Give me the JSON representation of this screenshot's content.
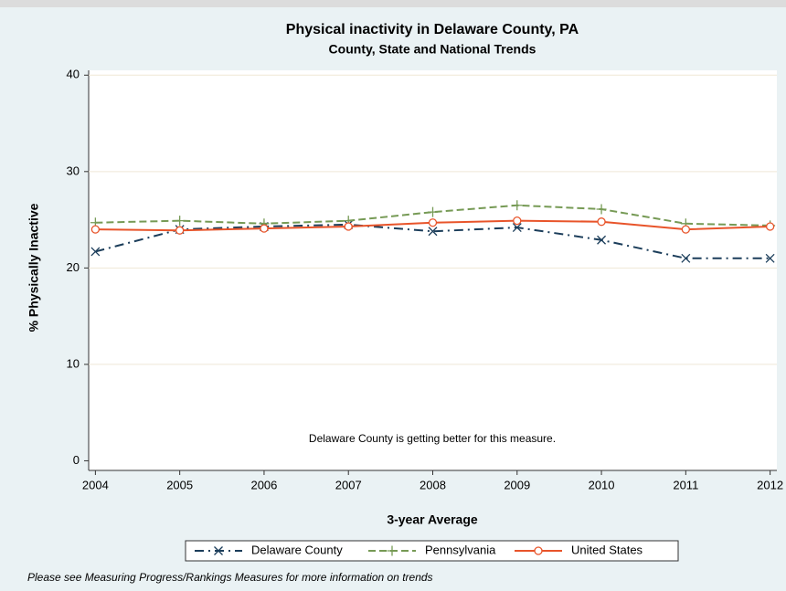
{
  "chart_data": {
    "type": "line",
    "title": "Physical inactivity in Delaware County, PA",
    "subtitle": "County, State and National Trends",
    "x_label": "3-year Average",
    "y_label": "% Physically Inactive",
    "annotation": "Delaware County is getting better for this measure.",
    "footnote": "Please see Measuring Progress/Rankings Measures for more information on trends",
    "x": [
      2004,
      2005,
      2006,
      2007,
      2008,
      2009,
      2010,
      2011,
      2012
    ],
    "series": [
      {
        "name": "Delaware County",
        "color": "#1b3d5a",
        "marker": "x",
        "dash": "dash-dot",
        "values": [
          21.7,
          24.0,
          24.3,
          24.5,
          23.8,
          24.2,
          22.9,
          21.0,
          21.0
        ]
      },
      {
        "name": "Pennsylvania",
        "color": "#769a55",
        "marker": "+",
        "dash": "dashed",
        "values": [
          24.7,
          24.9,
          24.6,
          24.9,
          25.8,
          26.5,
          26.1,
          24.6,
          24.4
        ]
      },
      {
        "name": "United States",
        "color": "#e8542a",
        "marker": "circle",
        "dash": "solid",
        "values": [
          24.0,
          23.9,
          24.1,
          24.3,
          24.7,
          24.9,
          24.8,
          24.0,
          24.3
        ]
      }
    ],
    "xlim": [
      2003.92,
      2012.08
    ],
    "xticks": [
      2004,
      2005,
      2006,
      2007,
      2008,
      2009,
      2010,
      2011,
      2012
    ],
    "ylim": [
      -1,
      40.5
    ],
    "yticks": [
      0,
      10,
      20,
      30,
      40
    ],
    "grid": true,
    "legend": "bottom"
  }
}
